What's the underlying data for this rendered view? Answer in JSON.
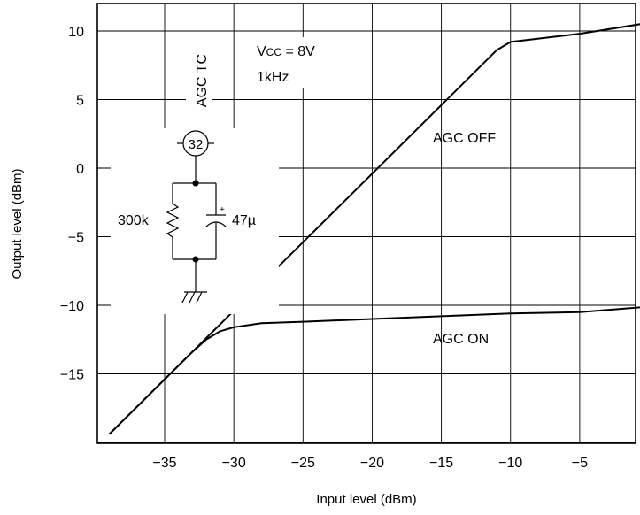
{
  "chart_data": {
    "type": "line",
    "xlabel": "Input level (dBm)",
    "ylabel": "Output level (dBm)",
    "xlim": [
      -40,
      0
    ],
    "ylim": [
      -20,
      12
    ],
    "x_ticks": [
      -35,
      -30,
      -25,
      -20,
      -15,
      -10,
      -5
    ],
    "y_ticks": [
      10,
      5,
      0,
      -5,
      -10,
      -15
    ],
    "x_tick_labels": [
      "−35",
      "−30",
      "−25",
      "−20",
      "−15",
      "−10",
      "−5"
    ],
    "y_tick_labels": [
      "10",
      "5",
      "0",
      "−5",
      "−10",
      "−15"
    ],
    "grid": true,
    "series": [
      {
        "name": "AGC OFF",
        "x": [
          -39,
          -35,
          -30,
          -25,
          -20,
          -15,
          -12,
          -11,
          -10,
          -5,
          0
        ],
        "y": [
          -19.4,
          -15.4,
          -10.4,
          -5.4,
          -0.4,
          4.6,
          7.6,
          8.6,
          9.2,
          9.8,
          10.6
        ]
      },
      {
        "name": "AGC ON",
        "x": [
          -39,
          -35,
          -33,
          -32,
          -31,
          -30,
          -28,
          -25,
          -20,
          -15,
          -10,
          -5,
          0
        ],
        "y": [
          -19.4,
          -15.4,
          -13.4,
          -12.5,
          -11.9,
          -11.6,
          -11.3,
          -11.2,
          -11.0,
          -10.8,
          -10.6,
          -10.5,
          -10.1
        ]
      }
    ],
    "annotations": {
      "agc_off": "AGC OFF",
      "agc_on": "AGC ON",
      "vcc": "Vcc = 8V",
      "freq": "1kHz"
    }
  },
  "schematic": {
    "pin_label": "AGC TC",
    "pin_number": "32",
    "resistor": "300k",
    "capacitor": "47µ",
    "cap_polarity": "+"
  }
}
